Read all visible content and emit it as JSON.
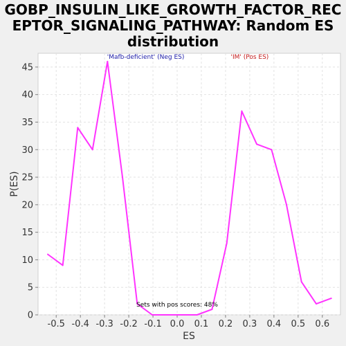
{
  "chart_data": {
    "type": "line",
    "title_lines": [
      "GOBP_INSULIN_LIKE_GROWTH_FACTOR_REC",
      "EPTOR_SIGNALING_PATHWAY: Random ES",
      "distribution"
    ],
    "xlabel": "ES",
    "ylabel": "P(ES)",
    "xlim": [
      -0.575,
      0.675
    ],
    "ylim": [
      0,
      47.5
    ],
    "x_ticks": [
      -0.5,
      -0.4,
      -0.3,
      -0.2,
      -0.1,
      0.0,
      0.1,
      0.2,
      0.3,
      0.4,
      0.5,
      0.6
    ],
    "x_tick_labels": [
      "-0.5",
      "-0.4",
      "-0.3",
      "-0.2",
      "-0.1",
      "0.0",
      "0.1",
      "0.2",
      "0.3",
      "0.4",
      "0.5",
      "0.6"
    ],
    "y_ticks": [
      0,
      5,
      10,
      15,
      20,
      25,
      30,
      35,
      40,
      45
    ],
    "y_tick_labels": [
      "0",
      "5",
      "10",
      "15",
      "20",
      "25",
      "30",
      "35",
      "40",
      "45"
    ],
    "grid": true,
    "series": [
      {
        "color": "#ff33ff",
        "x": [
          -0.535,
          -0.473,
          -0.411,
          -0.35,
          -0.288,
          -0.226,
          -0.165,
          -0.103,
          -0.041,
          0.02,
          0.082,
          0.144,
          0.205,
          0.267,
          0.329,
          0.39,
          0.452,
          0.514,
          0.575,
          0.637
        ],
        "y": [
          11,
          9,
          34,
          30,
          46,
          25,
          2,
          0,
          0,
          0,
          0,
          1,
          13,
          37,
          31,
          30,
          20,
          6,
          2,
          3
        ]
      }
    ],
    "annotations": [
      {
        "text": "'Mafb-deficient' (Neg ES)",
        "x": -0.13,
        "y": 46.5,
        "color": "#1a1aa8"
      },
      {
        "text": "'IM' (Pos ES)",
        "x": 0.3,
        "y": 46.5,
        "color": "#c41a1a"
      },
      {
        "text": "Sets with pos scores: 48%",
        "x": 0.0,
        "y": 1.5,
        "color": "#000000"
      }
    ]
  }
}
